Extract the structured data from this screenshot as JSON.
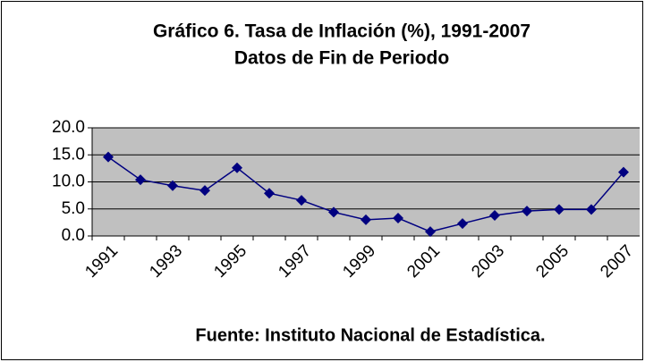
{
  "chart_data": {
    "type": "line",
    "title": "Gráfico 6. Tasa de Inflación (%), 1991-2007",
    "subtitle": "Datos de Fin de Periodo",
    "annotation": "Fuente: Instituto Nacional de Estadística.",
    "categories": [
      "1991",
      null,
      "1993",
      null,
      "1995",
      null,
      "1997",
      null,
      "1999",
      null,
      "2001",
      null,
      "2003",
      null,
      "2005",
      null,
      "2007"
    ],
    "values": [
      14.6,
      10.4,
      9.3,
      8.4,
      12.6,
      7.9,
      6.6,
      4.4,
      3.0,
      3.3,
      0.8,
      2.3,
      3.8,
      4.6,
      4.9,
      4.9,
      11.8
    ],
    "color": "#000080",
    "ylim": [
      0,
      20
    ],
    "yticks": [
      {
        "value": 0,
        "label": "0.0"
      },
      {
        "value": 5,
        "label": "5.0"
      },
      {
        "value": 10,
        "label": "10.0"
      },
      {
        "value": 15,
        "label": "15.0"
      },
      {
        "value": 20,
        "label": "20.0"
      }
    ],
    "grid": true
  }
}
